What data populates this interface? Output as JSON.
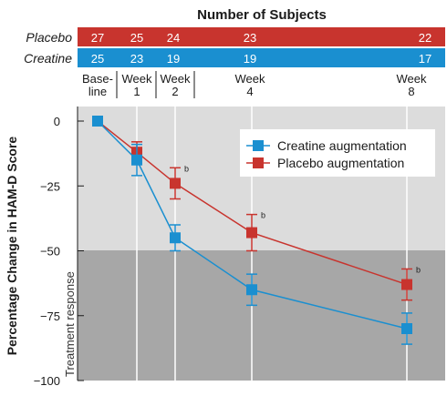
{
  "subjects_table": {
    "title": "Number of Subjects",
    "rows": [
      {
        "label": "Placebo",
        "color": "#c8342e",
        "counts": [
          "27",
          "25",
          "24",
          "23",
          "22"
        ]
      },
      {
        "label": "Creatine",
        "color": "#1a8fd0",
        "counts": [
          "25",
          "23",
          "19",
          "19",
          "17"
        ]
      }
    ],
    "timepoints": [
      {
        "line1": "Base-",
        "line2": "line"
      },
      {
        "line1": "Week",
        "line2": "1"
      },
      {
        "line1": "Week",
        "line2": "2"
      },
      {
        "line1": "Week",
        "line2": "4"
      },
      {
        "line1": "Week",
        "line2": "8"
      }
    ]
  },
  "chart_data": {
    "type": "line",
    "x": [
      0,
      1,
      2,
      4,
      8
    ],
    "ylabel": "Percentage Change in HAM-D Score",
    "ylim": [
      -100,
      0
    ],
    "yticks": [
      0,
      -25,
      -50,
      -75,
      -100
    ],
    "ytick_labels": [
      "0",
      "−25",
      "−50",
      "−75",
      "−100"
    ],
    "treatment_response_threshold": -50,
    "treatment_response_label": "Treatment response",
    "legend_position": "top-right",
    "series": [
      {
        "name": "Creatine augmentation",
        "color": "#1a8fd0",
        "marker": "square",
        "values": [
          0,
          -15,
          -45,
          -65,
          -80
        ],
        "errors": [
          0,
          6,
          5,
          6,
          6
        ],
        "notes": [
          "",
          "",
          "",
          "",
          ""
        ]
      },
      {
        "name": "Placebo augmentation",
        "color": "#c8342e",
        "marker": "square",
        "values": [
          0,
          -12,
          -24,
          -43,
          -63
        ],
        "errors": [
          0,
          4,
          6,
          7,
          6
        ],
        "notes": [
          "",
          "",
          "b",
          "b",
          "b"
        ]
      }
    ]
  }
}
